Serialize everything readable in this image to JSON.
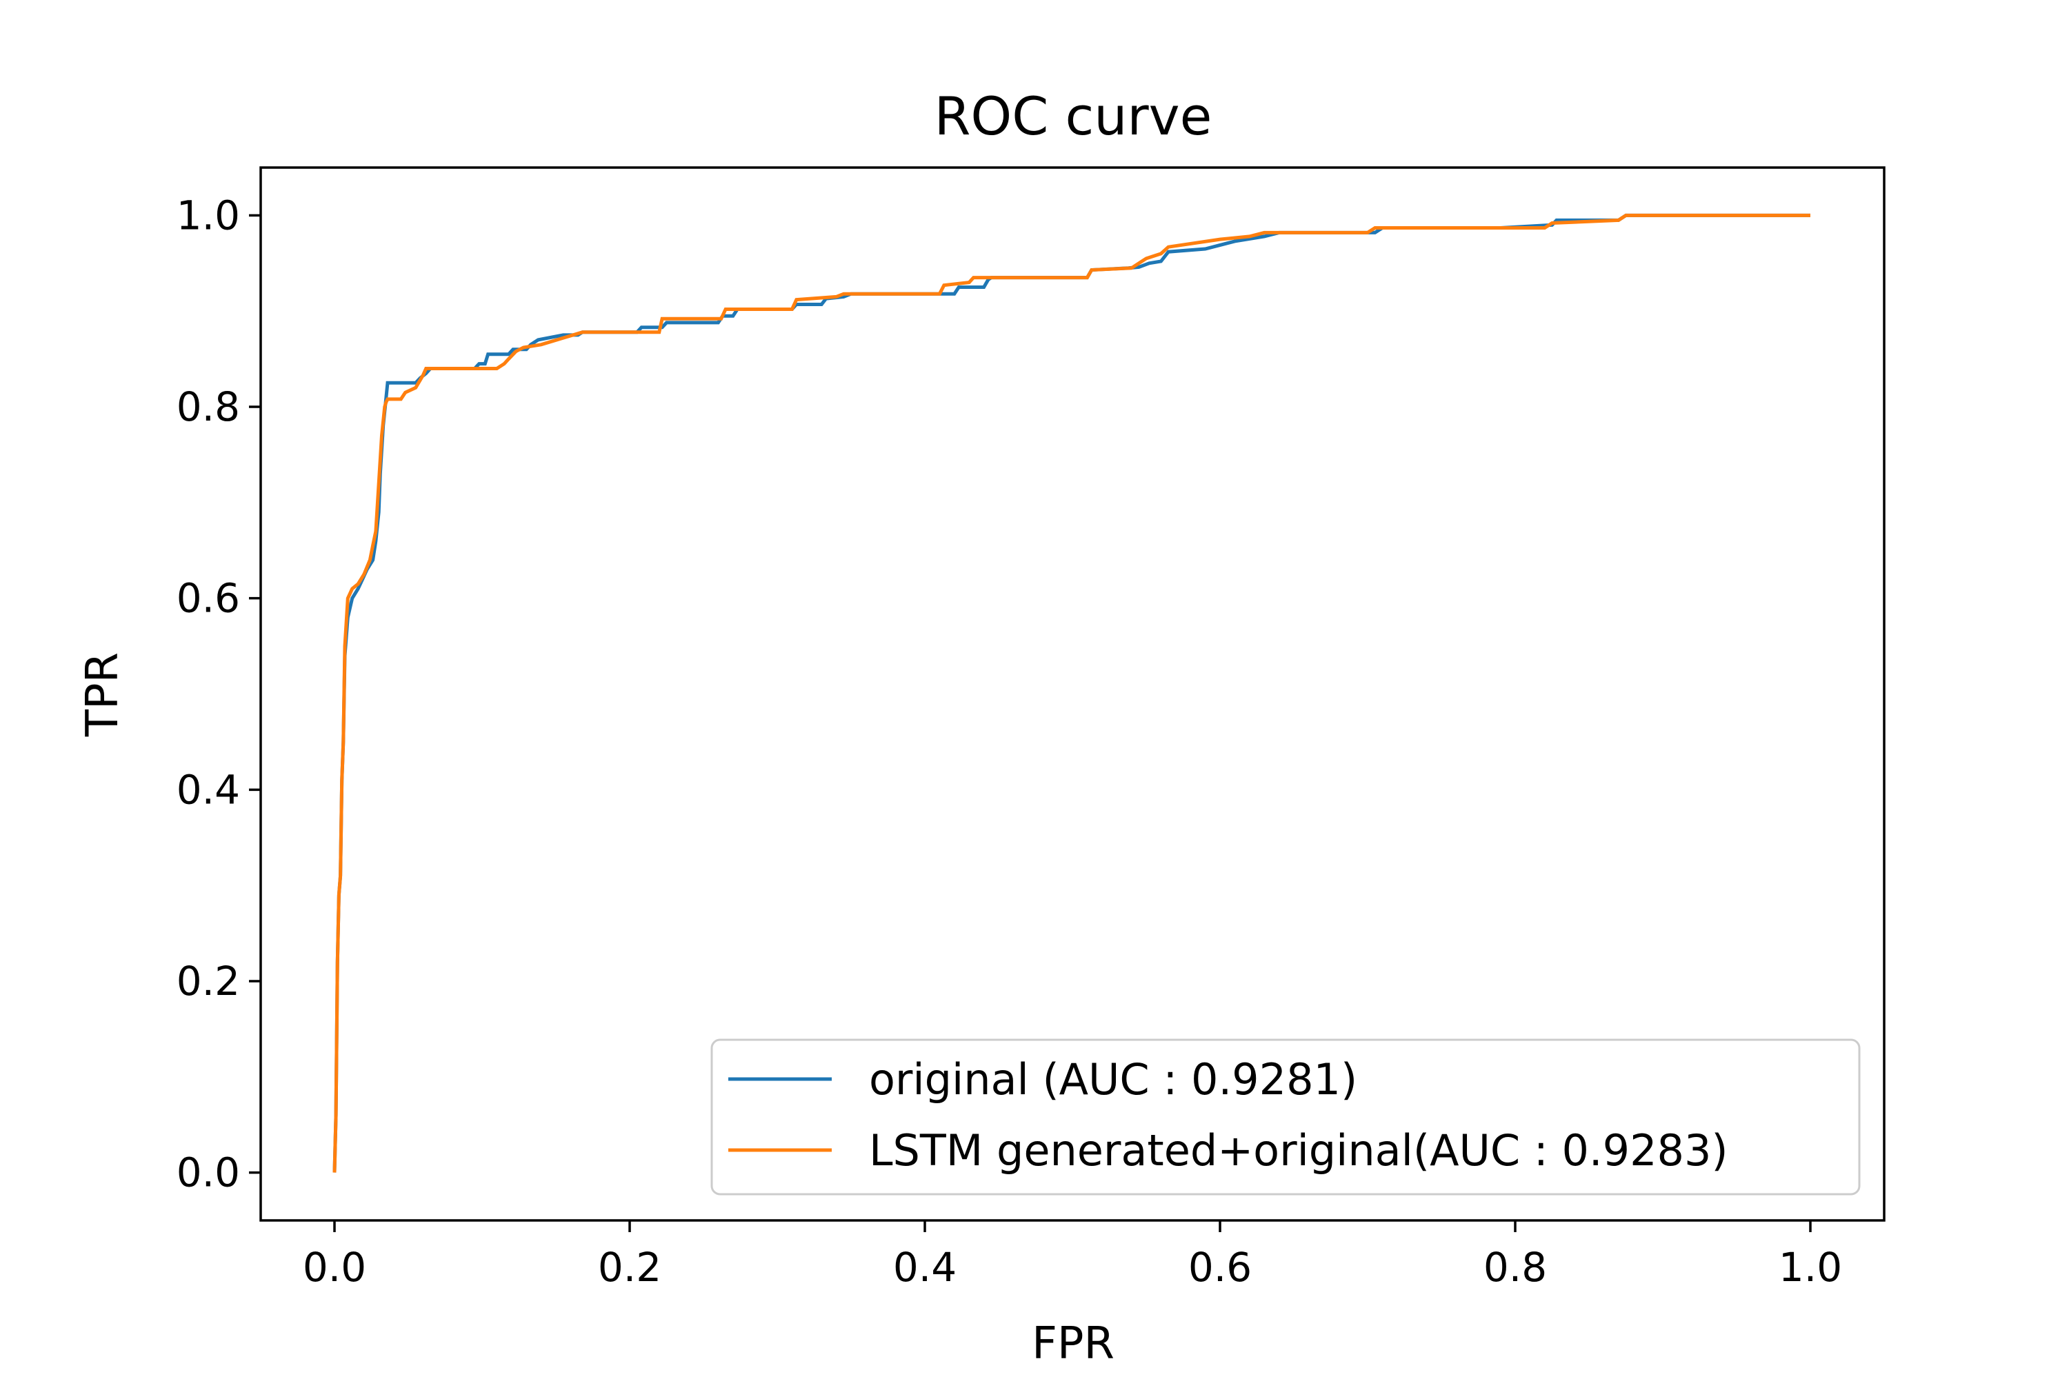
{
  "chart_data": {
    "type": "line",
    "title": "ROC curve",
    "xlabel": "FPR",
    "ylabel": "TPR",
    "xlim": [
      -0.05,
      1.05
    ],
    "ylim": [
      -0.05,
      1.05
    ],
    "x_ticks": [
      "0.0",
      "0.2",
      "0.4",
      "0.6",
      "0.8",
      "1.0"
    ],
    "y_ticks": [
      "0.0",
      "0.2",
      "0.4",
      "0.6",
      "0.8",
      "1.0"
    ],
    "grid": false,
    "legend_position": "lower-right",
    "series": [
      {
        "name": "original (AUC : 0.9281)",
        "color": "#1f77b4",
        "points": [
          [
            0.0,
            0.0
          ],
          [
            0.001,
            0.06
          ],
          [
            0.002,
            0.22
          ],
          [
            0.003,
            0.29
          ],
          [
            0.004,
            0.31
          ],
          [
            0.005,
            0.41
          ],
          [
            0.006,
            0.45
          ],
          [
            0.007,
            0.54
          ],
          [
            0.009,
            0.58
          ],
          [
            0.012,
            0.6
          ],
          [
            0.016,
            0.61
          ],
          [
            0.019,
            0.62
          ],
          [
            0.022,
            0.63
          ],
          [
            0.026,
            0.64
          ],
          [
            0.028,
            0.66
          ],
          [
            0.03,
            0.69
          ],
          [
            0.031,
            0.73
          ],
          [
            0.033,
            0.78
          ],
          [
            0.035,
            0.81
          ],
          [
            0.036,
            0.825
          ],
          [
            0.055,
            0.825
          ],
          [
            0.058,
            0.83
          ],
          [
            0.062,
            0.835
          ],
          [
            0.065,
            0.84
          ],
          [
            0.095,
            0.84
          ],
          [
            0.098,
            0.845
          ],
          [
            0.102,
            0.845
          ],
          [
            0.104,
            0.855
          ],
          [
            0.118,
            0.855
          ],
          [
            0.121,
            0.86
          ],
          [
            0.13,
            0.86
          ],
          [
            0.133,
            0.865
          ],
          [
            0.138,
            0.87
          ],
          [
            0.155,
            0.875
          ],
          [
            0.165,
            0.875
          ],
          [
            0.168,
            0.878
          ],
          [
            0.205,
            0.878
          ],
          [
            0.208,
            0.883
          ],
          [
            0.222,
            0.883
          ],
          [
            0.225,
            0.888
          ],
          [
            0.26,
            0.888
          ],
          [
            0.263,
            0.895
          ],
          [
            0.27,
            0.895
          ],
          [
            0.273,
            0.902
          ],
          [
            0.31,
            0.902
          ],
          [
            0.313,
            0.907
          ],
          [
            0.33,
            0.907
          ],
          [
            0.333,
            0.913
          ],
          [
            0.345,
            0.915
          ],
          [
            0.35,
            0.918
          ],
          [
            0.42,
            0.918
          ],
          [
            0.423,
            0.925
          ],
          [
            0.44,
            0.925
          ],
          [
            0.443,
            0.933
          ],
          [
            0.445,
            0.935
          ],
          [
            0.51,
            0.935
          ],
          [
            0.513,
            0.943
          ],
          [
            0.538,
            0.945
          ],
          [
            0.545,
            0.946
          ],
          [
            0.552,
            0.95
          ],
          [
            0.56,
            0.952
          ],
          [
            0.565,
            0.962
          ],
          [
            0.59,
            0.965
          ],
          [
            0.61,
            0.973
          ],
          [
            0.63,
            0.978
          ],
          [
            0.64,
            0.982
          ],
          [
            0.705,
            0.982
          ],
          [
            0.71,
            0.987
          ],
          [
            0.79,
            0.987
          ],
          [
            0.825,
            0.99
          ],
          [
            0.828,
            0.995
          ],
          [
            0.87,
            0.995
          ],
          [
            0.875,
            1.0
          ],
          [
            1.0,
            1.0
          ]
        ]
      },
      {
        "name": "LSTM generated+original(AUC : 0.9283)",
        "color": "#ff7f0e",
        "points": [
          [
            0.0,
            0.0
          ],
          [
            0.001,
            0.06
          ],
          [
            0.002,
            0.22
          ],
          [
            0.003,
            0.29
          ],
          [
            0.004,
            0.31
          ],
          [
            0.005,
            0.41
          ],
          [
            0.006,
            0.45
          ],
          [
            0.007,
            0.55
          ],
          [
            0.009,
            0.6
          ],
          [
            0.012,
            0.61
          ],
          [
            0.016,
            0.615
          ],
          [
            0.02,
            0.625
          ],
          [
            0.024,
            0.64
          ],
          [
            0.026,
            0.655
          ],
          [
            0.028,
            0.67
          ],
          [
            0.03,
            0.72
          ],
          [
            0.032,
            0.77
          ],
          [
            0.034,
            0.8
          ],
          [
            0.035,
            0.805
          ],
          [
            0.036,
            0.808
          ],
          [
            0.045,
            0.808
          ],
          [
            0.048,
            0.815
          ],
          [
            0.055,
            0.82
          ],
          [
            0.06,
            0.833
          ],
          [
            0.062,
            0.84
          ],
          [
            0.11,
            0.84
          ],
          [
            0.115,
            0.845
          ],
          [
            0.118,
            0.85
          ],
          [
            0.123,
            0.858
          ],
          [
            0.128,
            0.862
          ],
          [
            0.14,
            0.865
          ],
          [
            0.155,
            0.872
          ],
          [
            0.168,
            0.878
          ],
          [
            0.22,
            0.878
          ],
          [
            0.222,
            0.892
          ],
          [
            0.262,
            0.892
          ],
          [
            0.265,
            0.902
          ],
          [
            0.31,
            0.902
          ],
          [
            0.313,
            0.912
          ],
          [
            0.34,
            0.915
          ],
          [
            0.345,
            0.918
          ],
          [
            0.41,
            0.918
          ],
          [
            0.413,
            0.927
          ],
          [
            0.43,
            0.93
          ],
          [
            0.433,
            0.935
          ],
          [
            0.51,
            0.935
          ],
          [
            0.513,
            0.943
          ],
          [
            0.54,
            0.945
          ],
          [
            0.545,
            0.95
          ],
          [
            0.55,
            0.955
          ],
          [
            0.56,
            0.96
          ],
          [
            0.565,
            0.967
          ],
          [
            0.6,
            0.975
          ],
          [
            0.62,
            0.978
          ],
          [
            0.63,
            0.982
          ],
          [
            0.7,
            0.982
          ],
          [
            0.705,
            0.987
          ],
          [
            0.82,
            0.987
          ],
          [
            0.825,
            0.992
          ],
          [
            0.87,
            0.995
          ],
          [
            0.875,
            1.0
          ],
          [
            1.0,
            1.0
          ]
        ]
      }
    ]
  }
}
